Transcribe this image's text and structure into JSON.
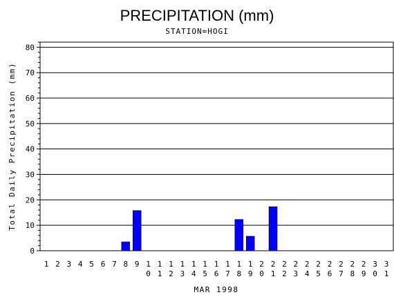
{
  "chart_data": {
    "type": "bar",
    "title": "PRECIPITATION (mm)",
    "subtitle": "STATION=HOGI",
    "xlabel": "MAR 1998",
    "ylabel": "Total Daily Precipitation (mm)",
    "ylim": [
      0,
      82
    ],
    "yticks": [
      0,
      10,
      20,
      30,
      40,
      50,
      60,
      70,
      80
    ],
    "grid": true,
    "bar_color": "#0000ff",
    "categories": [
      "1",
      "2",
      "3",
      "4",
      "5",
      "6",
      "7",
      "8",
      "9",
      "10",
      "11",
      "12",
      "13",
      "14",
      "15",
      "16",
      "17",
      "18",
      "19",
      "20",
      "21",
      "22",
      "23",
      "24",
      "25",
      "26",
      "27",
      "28",
      "29",
      "30",
      "31"
    ],
    "values": [
      0,
      0,
      0,
      0,
      0,
      0,
      0,
      3.5,
      15.8,
      0,
      0,
      0,
      0,
      0,
      0,
      0,
      0,
      12.3,
      5.7,
      0,
      17.3,
      0,
      0,
      0,
      0,
      0,
      0,
      0,
      0,
      0,
      0
    ]
  }
}
